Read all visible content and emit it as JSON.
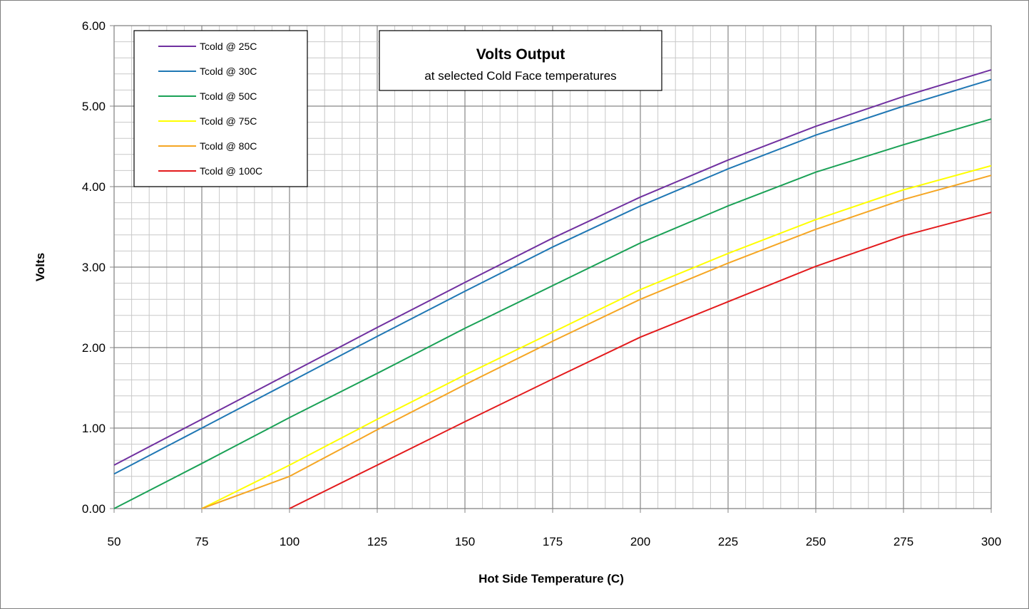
{
  "chart_data": {
    "type": "line",
    "title": "Volts Output",
    "subtitle": "at selected Cold Face temperatures",
    "xlabel": "Hot Side Temperature (C)",
    "ylabel": "Volts",
    "xlim": [
      50,
      300
    ],
    "ylim": [
      0,
      6
    ],
    "x_ticks": [
      "50",
      "75",
      "100",
      "125",
      "150",
      "175",
      "200",
      "225",
      "250",
      "275",
      "300"
    ],
    "y_ticks": [
      "0.00",
      "1.00",
      "2.00",
      "3.00",
      "4.00",
      "5.00",
      "6.00"
    ],
    "grid": "on (major and minor)",
    "legend_position": "top-left",
    "series": [
      {
        "name": "Tcold @ 25C",
        "color": "#7030a0",
        "x": [
          50,
          75,
          100,
          125,
          150,
          175,
          200,
          225,
          250,
          275,
          300
        ],
        "y": [
          0.54,
          1.11,
          1.68,
          2.25,
          2.81,
          3.36,
          3.87,
          4.33,
          4.75,
          5.12,
          5.45
        ]
      },
      {
        "name": "Tcold @ 30C",
        "color": "#1f77b4",
        "x": [
          50,
          75,
          100,
          125,
          150,
          175,
          200,
          225,
          250,
          275,
          300
        ],
        "y": [
          0.43,
          1.0,
          1.57,
          2.14,
          2.7,
          3.25,
          3.76,
          4.22,
          4.64,
          5.0,
          5.33
        ]
      },
      {
        "name": "Tcold @ 50C",
        "color": "#1aa156",
        "x": [
          50,
          75,
          100,
          125,
          150,
          175,
          200,
          225,
          250,
          275,
          300
        ],
        "y": [
          0.0,
          0.56,
          1.13,
          1.68,
          2.24,
          2.77,
          3.3,
          3.76,
          4.18,
          4.52,
          4.84
        ]
      },
      {
        "name": "Tcold @ 75C",
        "color": "#ffff00",
        "x": [
          75,
          100,
          125,
          150,
          175,
          200,
          225,
          250,
          275,
          300
        ],
        "y": [
          0.0,
          0.54,
          1.11,
          1.66,
          2.19,
          2.72,
          3.17,
          3.59,
          3.96,
          4.26
        ]
      },
      {
        "name": "Tcold @ 80C",
        "color": "#f5a623",
        "x": [
          75,
          100,
          125,
          150,
          175,
          200,
          225,
          250,
          275,
          300
        ],
        "y": [
          0.0,
          0.4,
          0.98,
          1.54,
          2.08,
          2.6,
          3.05,
          3.47,
          3.84,
          4.14
        ]
      },
      {
        "name": "Tcold @ 100C",
        "color": "#e31a1c",
        "x": [
          100,
          125,
          150,
          175,
          200,
          225,
          250,
          275,
          300
        ],
        "y": [
          0.0,
          0.54,
          1.08,
          1.61,
          2.13,
          2.57,
          3.01,
          3.39,
          3.68
        ]
      }
    ]
  }
}
